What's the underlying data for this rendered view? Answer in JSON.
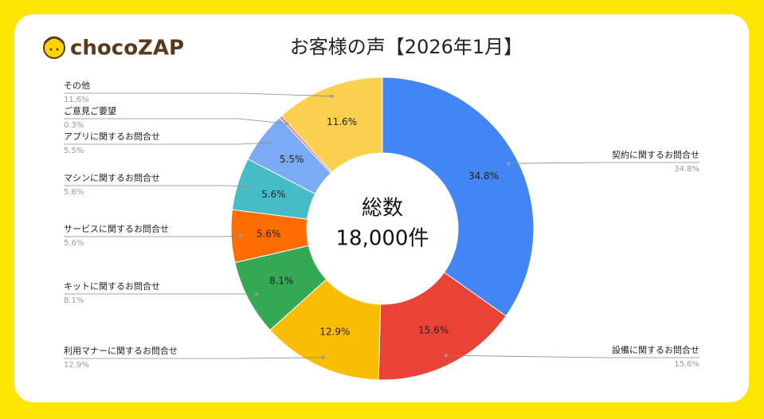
{
  "logo": "chocoZAP",
  "chart_data": {
    "type": "donut",
    "title": "お客様の声【2026年1月】",
    "center_label": [
      "総数",
      "18,000件"
    ],
    "categories": [
      "契約に関するお問合せ",
      "設備に関するお問合せ",
      "利用マナーに関するお問合せ",
      "キットに関するお問合せ",
      "サービスに関するお問合せ",
      "マシンに関するお問合せ",
      "アプリに関するお問合せ",
      "ご意見ご要望",
      "その他"
    ],
    "values": [
      34.8,
      15.6,
      12.9,
      8.1,
      5.6,
      5.6,
      5.5,
      0.3,
      11.6
    ],
    "value_labels": [
      "34.8%",
      "15.6%",
      "12.9%",
      "8.1%",
      "5.6%",
      "5.6%",
      "5.5%",
      "0.3%",
      "11.6%"
    ],
    "colors": [
      "#4285f4",
      "#ea4335",
      "#fbbc04",
      "#34a853",
      "#ff6d01",
      "#46bdc6",
      "#7baaf7",
      "#f07b72",
      "#fcd04f"
    ]
  }
}
